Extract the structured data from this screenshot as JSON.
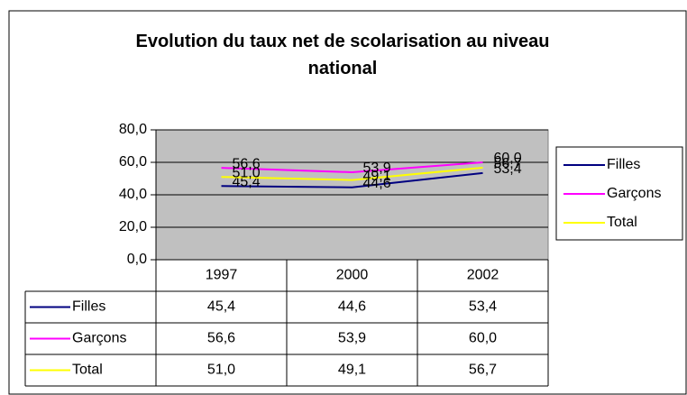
{
  "chart_data": {
    "type": "line",
    "title": "Evolution du taux net de scolarisation au niveau national",
    "categories": [
      "1997",
      "2000",
      "2002"
    ],
    "series": [
      {
        "name": "Filles",
        "color": "#000080",
        "values": [
          45.4,
          44.6,
          53.4
        ],
        "value_labels": [
          "45,4",
          "44,6",
          "53,4"
        ]
      },
      {
        "name": "Garçons",
        "color": "#ff00ff",
        "values": [
          56.6,
          53.9,
          60.0
        ],
        "value_labels": [
          "56,6",
          "53,9",
          "60,0"
        ]
      },
      {
        "name": "Total",
        "color": "#ffff00",
        "values": [
          51.0,
          49.1,
          56.7
        ],
        "value_labels": [
          "51,0",
          "49,1",
          "56,7"
        ]
      }
    ],
    "ylim": [
      0,
      80
    ],
    "yticks": [
      {
        "value": 0,
        "label": "0,0"
      },
      {
        "value": 20,
        "label": "20,0"
      },
      {
        "value": 40,
        "label": "40,0"
      },
      {
        "value": 60,
        "label": "60,0"
      },
      {
        "value": 80,
        "label": "80,0"
      }
    ],
    "grid": true,
    "legend": "right",
    "plot_background": "#c0c0c0"
  }
}
